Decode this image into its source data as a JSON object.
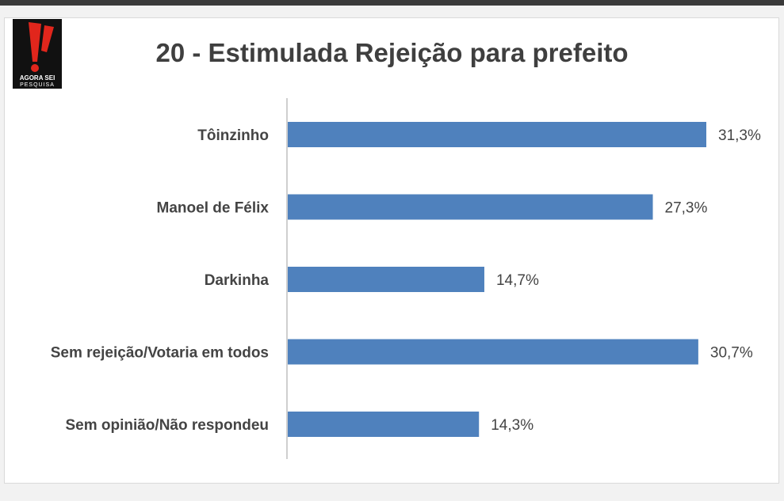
{
  "logo": {
    "text_line1": "AGORA SEI",
    "text_line2": "PESQUISA"
  },
  "colors": {
    "bar": "#4f81bd",
    "text": "#444444",
    "axis": "#bfbfbf"
  },
  "chart_data": {
    "type": "bar",
    "orientation": "horizontal",
    "title": "20 - Estimulada Rejeição para prefeito",
    "categories": [
      "Tôinzinho",
      "Manoel de Félix",
      "Darkinha",
      "Sem rejeição/Votaria em todos",
      "Sem opinião/Não respondeu"
    ],
    "values": [
      31.3,
      27.3,
      14.7,
      30.7,
      14.3
    ],
    "value_labels": [
      "31,3%",
      "27,3%",
      "14,7%",
      "30,7%",
      "14,3%"
    ],
    "xlabel": "",
    "ylabel": "",
    "grid": false,
    "legend": "none"
  }
}
